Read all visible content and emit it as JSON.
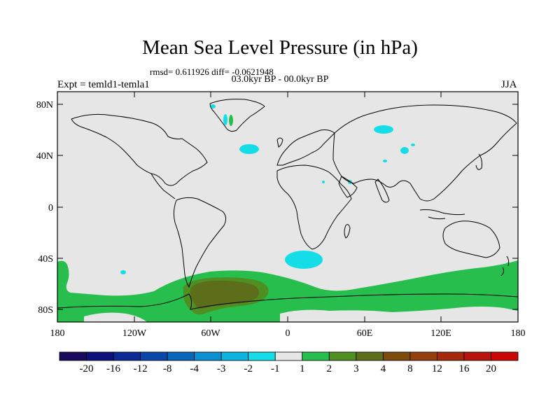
{
  "header": {
    "title": "Mean Sea Level Pressure (in hPa)",
    "stats": "rmsd= 0.611926 diff= -0.0621948",
    "period": "03.0kyr BP - 00.0kyr BP",
    "experiment": "Expt = temld1-temla1",
    "season": "JJA"
  },
  "axes": {
    "lat_ticks": [
      "80N",
      "40N",
      "0",
      "40S",
      "80S"
    ],
    "lon_ticks": [
      "180",
      "120W",
      "60W",
      "0",
      "60E",
      "120E",
      "180"
    ]
  },
  "colorbar": {
    "labels": [
      "-20",
      "-16",
      "-12",
      "-8",
      "-4",
      "-3",
      "-2",
      "-1",
      "1",
      "2",
      "3",
      "4",
      "8",
      "12",
      "16",
      "20"
    ],
    "colors": [
      "#1a0a5e",
      "#0c127a",
      "#0c2a94",
      "#0a45a8",
      "#0a66bb",
      "#0a8fd0",
      "#0ab3e0",
      "#15dde8",
      "#e6e6e6",
      "#27be4d",
      "#4f8f22",
      "#5d6e1a",
      "#7c4b0c",
      "#953e0e",
      "#a52a0c",
      "#b7140c",
      "#cc0606"
    ]
  },
  "colors": {
    "land_ocean_background": "#e6e6e6",
    "coastline": "#000000"
  }
}
